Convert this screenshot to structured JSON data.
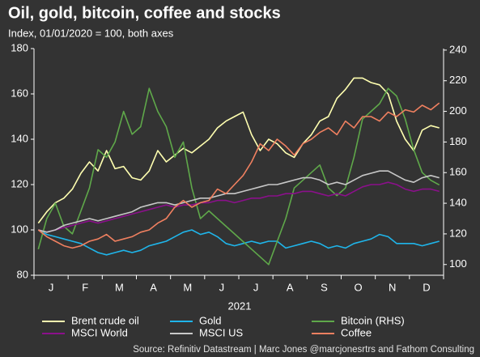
{
  "chart_data": {
    "type": "line",
    "title": "Oil, gold, bitcoin, coffee and stocks",
    "subtitle": "Index, 01/01/2020 = 100, both axes",
    "x_label": "2021",
    "source": "Source: Refinitiv Datastream | Marc Jones @marcjonesrtrs and Fathom Consulting",
    "categories": [
      null,
      "J",
      null,
      null,
      null,
      "F",
      null,
      null,
      null,
      "M",
      null,
      null,
      null,
      "A",
      null,
      null,
      null,
      "M",
      null,
      null,
      null,
      "J",
      null,
      null,
      null,
      "J",
      null,
      null,
      null,
      "A",
      null,
      null,
      null,
      "S",
      null,
      null,
      null,
      "O",
      null,
      null,
      null,
      "N",
      null,
      null,
      null,
      "D",
      null,
      null
    ],
    "ylim": [
      80,
      180
    ],
    "yticks": [
      80,
      100,
      120,
      140,
      160,
      180
    ],
    "y2lim": [
      93,
      241
    ],
    "y2ticks": [
      100,
      120,
      140,
      160,
      180,
      200,
      220,
      240
    ],
    "series": [
      {
        "name": "Brent crude oil",
        "color": "#ffffb0",
        "values": [
          103,
          108,
          112,
          114,
          118,
          125,
          130,
          126,
          135,
          127,
          128,
          123,
          122,
          126,
          135,
          130,
          133,
          136,
          134,
          137,
          140,
          145,
          148,
          150,
          152,
          142,
          135,
          140,
          138,
          134,
          132,
          138,
          142,
          148,
          150,
          158,
          162,
          167,
          167,
          165,
          164,
          160,
          148,
          140,
          135,
          144,
          146,
          145
        ]
      },
      {
        "name": "Gold",
        "color": "#1fb5ea",
        "values": [
          100,
          98,
          97,
          96,
          95,
          94,
          92,
          90,
          89,
          90,
          91,
          90,
          91,
          93,
          94,
          95,
          97,
          99,
          100,
          98,
          99,
          97,
          94,
          93,
          94,
          95,
          94,
          95,
          95,
          92,
          93,
          94,
          95,
          94,
          92,
          93,
          92,
          94,
          95,
          96,
          98,
          97,
          94,
          94,
          94,
          93,
          94,
          95
        ]
      },
      {
        "name": "Bitcoin (RHS)",
        "color": "#5fa84a",
        "axis": "y2",
        "values": [
          110,
          130,
          140,
          125,
          120,
          135,
          150,
          175,
          170,
          180,
          200,
          185,
          190,
          215,
          200,
          190,
          170,
          180,
          150,
          130,
          135,
          130,
          125,
          120,
          115,
          110,
          105,
          100,
          115,
          130,
          150,
          155,
          160,
          165,
          150,
          145,
          150,
          170,
          195,
          200,
          205,
          215,
          210,
          195,
          175,
          160,
          155,
          152
        ]
      },
      {
        "name": "MSCI World",
        "color": "#8b108b",
        "values": [
          100,
          99,
          100,
          101,
          102,
          103,
          104,
          103,
          104,
          105,
          106,
          107,
          108,
          109,
          110,
          111,
          110,
          111,
          111,
          112,
          112,
          113,
          113,
          112,
          113,
          114,
          114,
          115,
          115,
          116,
          116,
          117,
          117,
          116,
          115,
          116,
          115,
          117,
          119,
          120,
          120,
          121,
          120,
          118,
          117,
          118,
          118,
          117
        ]
      },
      {
        "name": "MSCI US",
        "color": "#c8c8c8",
        "values": [
          100,
          99,
          100,
          102,
          103,
          104,
          105,
          104,
          105,
          106,
          107,
          108,
          110,
          111,
          112,
          112,
          111,
          112,
          113,
          114,
          114,
          115,
          116,
          116,
          117,
          118,
          119,
          120,
          120,
          121,
          122,
          123,
          123,
          122,
          120,
          121,
          120,
          122,
          124,
          125,
          126,
          126,
          124,
          122,
          121,
          123,
          124,
          123
        ]
      },
      {
        "name": "Coffee",
        "color": "#f08060",
        "values": [
          100,
          97,
          95,
          93,
          92,
          93,
          95,
          96,
          98,
          95,
          96,
          97,
          99,
          100,
          103,
          105,
          110,
          113,
          110,
          112,
          113,
          118,
          116,
          120,
          124,
          130,
          138,
          135,
          140,
          137,
          133,
          138,
          140,
          143,
          145,
          142,
          148,
          145,
          150,
          150,
          148,
          152,
          150,
          153,
          152,
          155,
          153,
          156
        ]
      }
    ]
  }
}
